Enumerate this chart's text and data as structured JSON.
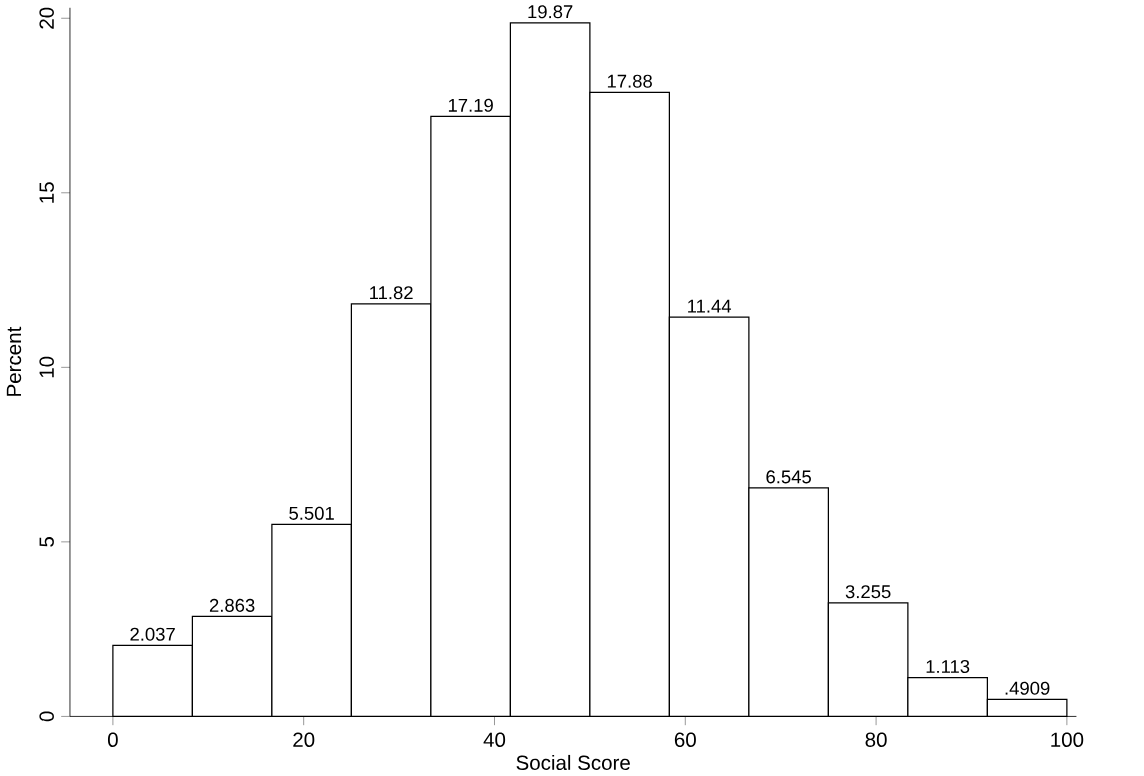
{
  "chart_data": {
    "type": "histogram",
    "xlabel": "Social Score",
    "ylabel": "Percent",
    "bins": [
      0,
      8.333,
      16.667,
      25,
      33.333,
      41.667,
      50,
      58.333,
      66.667,
      75,
      83.333,
      91.667,
      100
    ],
    "values": [
      2.037,
      2.863,
      5.501,
      11.82,
      17.19,
      19.87,
      17.88,
      11.44,
      6.545,
      3.255,
      1.113,
      0.4909
    ],
    "value_labels": [
      "2.037",
      "2.863",
      "5.501",
      "11.82",
      "17.19",
      "19.87",
      "17.88",
      "11.44",
      "6.545",
      "3.255",
      "1.113",
      ".4909"
    ],
    "color": "#ffffff",
    "xlim": [
      -4.5,
      101
    ],
    "ylim": [
      0,
      20.3
    ],
    "xticks": [
      0,
      20,
      40,
      60,
      80,
      100
    ],
    "yticks": [
      0,
      5,
      10,
      15,
      20
    ],
    "grid": false
  }
}
